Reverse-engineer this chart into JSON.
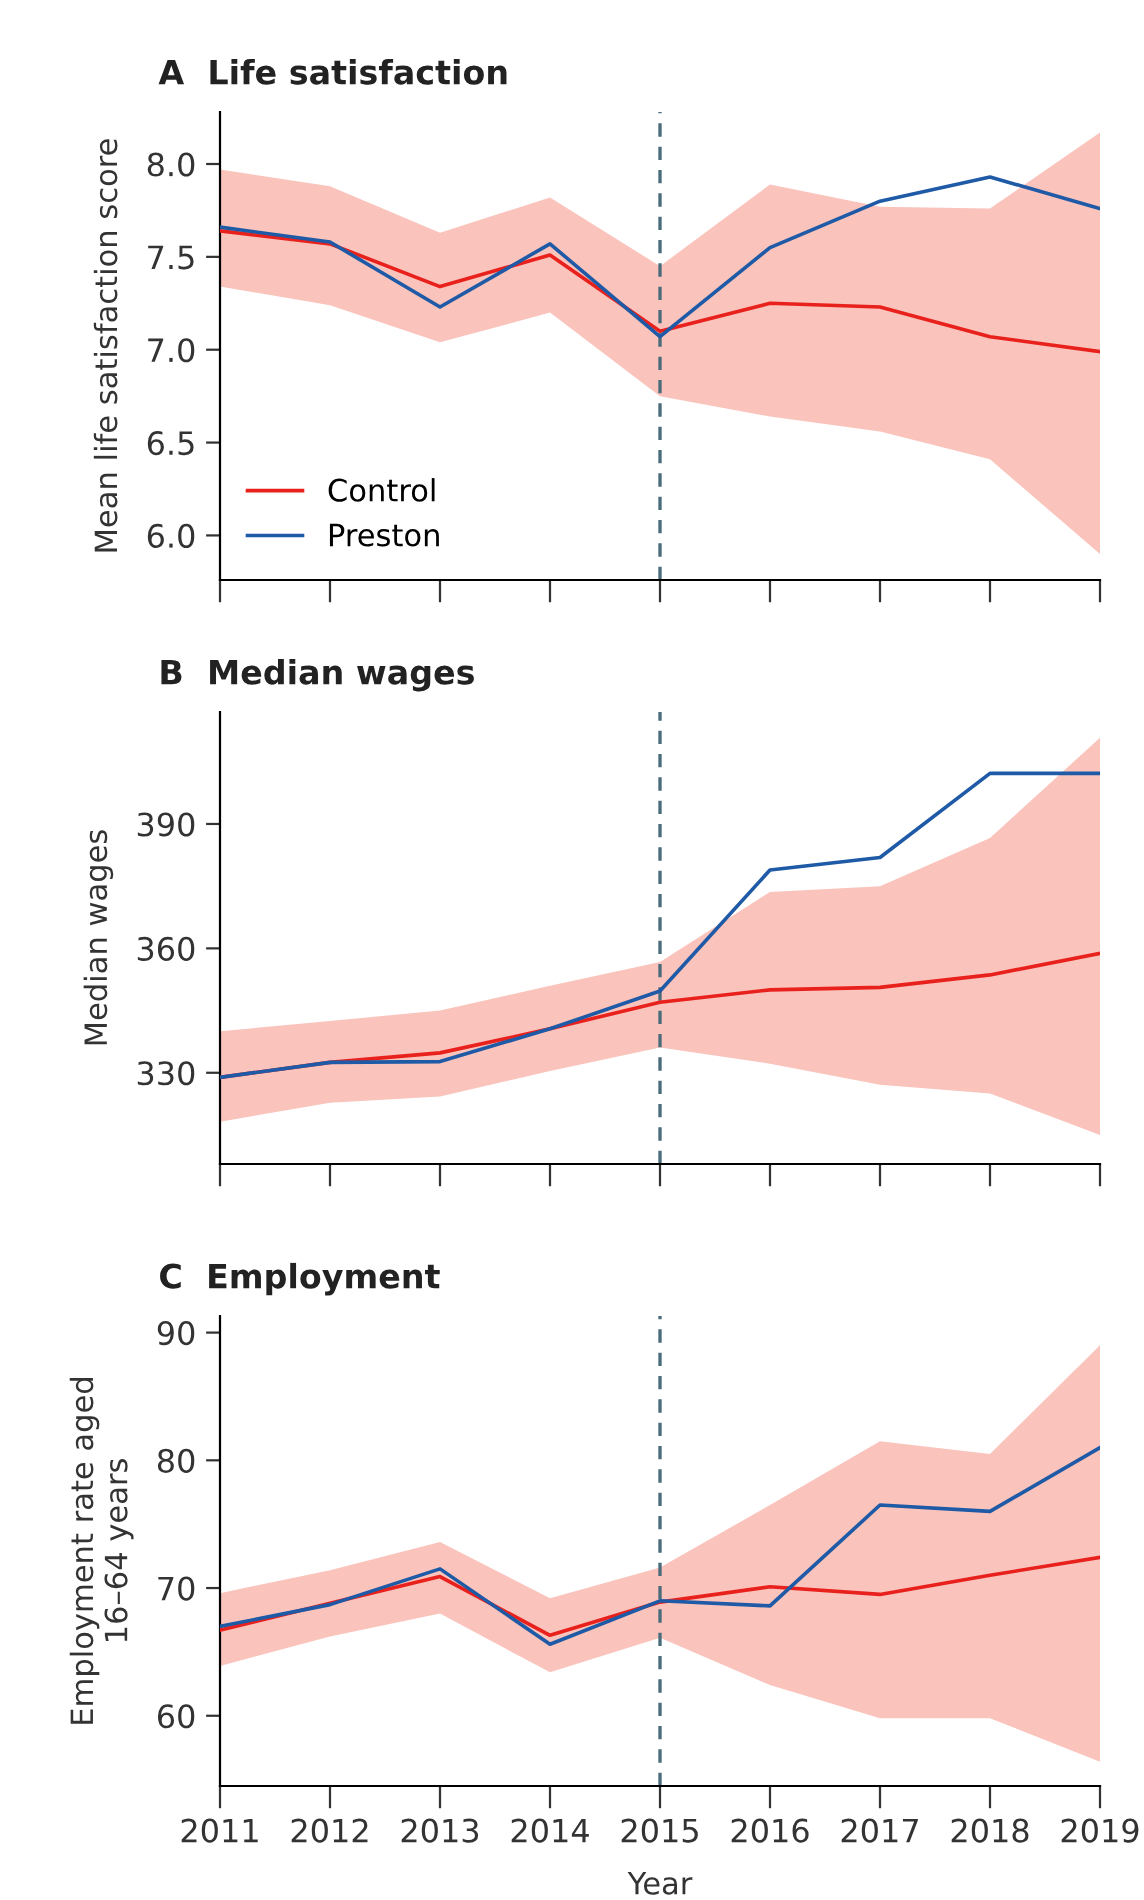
{
  "chart_data": [
    {
      "type": "line",
      "title": "A  Life satisfaction",
      "ylabel": "Mean life satisfaction score",
      "x": [
        2011,
        2012,
        2013,
        2014,
        2015,
        2016,
        2017,
        2018,
        2019
      ],
      "series": [
        {
          "name": "Control",
          "color": "#e8211d",
          "values": [
            7.64,
            7.57,
            7.34,
            7.51,
            7.1,
            7.25,
            7.23,
            7.07,
            6.99
          ],
          "lower": [
            7.34,
            7.24,
            7.04,
            7.2,
            6.75,
            6.64,
            6.56,
            6.41,
            5.9
          ],
          "upper": [
            7.97,
            7.88,
            7.63,
            7.82,
            7.45,
            7.89,
            7.77,
            7.76,
            8.17
          ]
        },
        {
          "name": "Preston",
          "color": "#1f5aa6",
          "values": [
            7.66,
            7.58,
            7.23,
            7.57,
            7.07,
            7.55,
            7.8,
            7.93,
            7.76
          ]
        }
      ],
      "xlim": [
        2011,
        2019
      ],
      "xticks": [
        2011,
        2012,
        2013,
        2014,
        2015,
        2016,
        2017,
        2018,
        2019
      ],
      "ylim": [
        5.76,
        8.28
      ],
      "yticks": [
        {
          "value": 6,
          "label": "6.0"
        },
        {
          "value": 6.5,
          "label": "6.5"
        },
        {
          "value": 7,
          "label": "7.0"
        },
        {
          "value": 7.5,
          "label": "7.5"
        },
        {
          "value": 8,
          "label": "8.0"
        }
      ],
      "ref_lines": [
        {
          "axis": "x",
          "value": 2015,
          "color": "#4a6b7a",
          "line_style": "dashed"
        }
      ],
      "legend": "bottom left",
      "grid": false,
      "tick_labels": "y"
    },
    {
      "type": "line",
      "title": "B  Median wages",
      "ylabel": "Median wages",
      "x": [
        2011,
        2012,
        2013,
        2014,
        2015,
        2016,
        2017,
        2018,
        2019
      ],
      "series": [
        {
          "color": "#e8211d",
          "values": [
            328.9,
            332.5,
            334.8,
            340.6,
            347.0,
            350.0,
            350.6,
            353.6,
            358.8
          ],
          "lower": [
            318.2,
            322.8,
            324.3,
            330.4,
            336.1,
            332.2,
            327.1,
            325.0,
            315.0
          ],
          "upper": [
            340.0,
            342.5,
            345.0,
            351.0,
            356.7,
            373.6,
            375.0,
            386.6,
            410.8
          ]
        },
        {
          "color": "#1f5aa6",
          "values": [
            328.9,
            332.5,
            332.7,
            340.6,
            349.7,
            378.9,
            381.9,
            402.2,
            402.2
          ]
        }
      ],
      "xlim": [
        2011,
        2019
      ],
      "xticks": [
        2011,
        2012,
        2013,
        2014,
        2015,
        2016,
        2017,
        2018,
        2019
      ],
      "ylim": [
        308,
        417
      ],
      "yticks": [
        330,
        360,
        390
      ],
      "ref_lines": [
        {
          "axis": "x",
          "value": 2015,
          "color": "#4a6b7a",
          "line_style": "dashed"
        }
      ],
      "grid": false,
      "tick_labels": "y"
    },
    {
      "type": "line",
      "title": "C  Employment",
      "xlabel": "Year",
      "ylabel": "Employment rate aged\n16–64 years",
      "x": [
        2011,
        2012,
        2013,
        2014,
        2015,
        2016,
        2017,
        2018,
        2019
      ],
      "series": [
        {
          "color": "#e8211d",
          "values": [
            66.7,
            68.8,
            70.9,
            66.3,
            68.9,
            70.1,
            69.5,
            71.0,
            72.4
          ],
          "lower": [
            63.9,
            66.2,
            68.0,
            63.4,
            66.1,
            62.4,
            59.8,
            59.8,
            56.4
          ],
          "upper": [
            69.6,
            71.4,
            73.6,
            69.2,
            71.6,
            76.5,
            81.5,
            80.5,
            89.0
          ]
        },
        {
          "color": "#1f5aa6",
          "values": [
            67.0,
            68.7,
            71.5,
            65.6,
            69.0,
            68.6,
            76.5,
            76.0,
            81.0
          ]
        }
      ],
      "xlim": [
        2011,
        2019
      ],
      "xticks": [
        2011,
        2012,
        2013,
        2014,
        2015,
        2016,
        2017,
        2018,
        2019
      ],
      "ylim": [
        54.5,
        91.3
      ],
      "yticks": [
        60,
        70,
        80,
        90
      ],
      "ref_lines": [
        {
          "axis": "x",
          "value": 2015,
          "color": "#4a6b7a",
          "line_style": "dashed"
        }
      ],
      "grid": false
    }
  ]
}
